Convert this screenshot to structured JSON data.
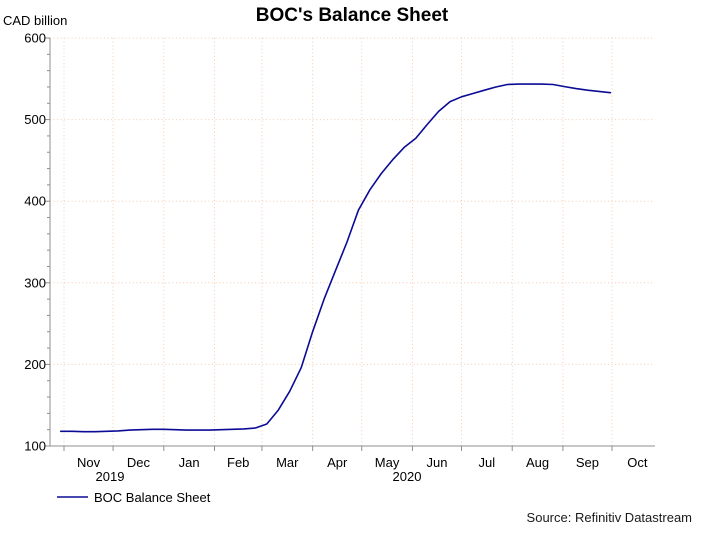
{
  "footer": {
    "source": "Source: Refinitiv Datastream"
  },
  "colors": {
    "line": "#0b0b96",
    "grid": "#f4cbb0",
    "axis": "#8f8f8f",
    "text": "#000000"
  },
  "chart_data": {
    "type": "line",
    "title": "BOC's Balance Sheet",
    "ylabel": "CAD billion",
    "ylim": [
      100,
      600
    ],
    "yticks": [
      100,
      200,
      300,
      400,
      500,
      600
    ],
    "y_minor_step": 20,
    "grid": true,
    "legend_position": "bottom-left",
    "x_axis": {
      "start": "2019-10-30",
      "end": "2020-10-26",
      "month_labels": [
        "Nov",
        "Dec",
        "Jan",
        "Feb",
        "Mar",
        "Apr",
        "May",
        "Jun",
        "Jul",
        "Aug",
        "Sep",
        "Oct"
      ],
      "year_labels": [
        "2019",
        "2020"
      ]
    },
    "series": [
      {
        "name": "BOC Balance Sheet",
        "color": "#0b0b96",
        "points": [
          [
            "2019-10-30",
            118
          ],
          [
            "2019-11-06",
            118
          ],
          [
            "2019-11-13",
            117.5
          ],
          [
            "2019-11-20",
            117.5
          ],
          [
            "2019-11-27",
            118
          ],
          [
            "2019-12-04",
            118.5
          ],
          [
            "2019-12-11",
            119.5
          ],
          [
            "2019-12-18",
            120
          ],
          [
            "2019-12-25",
            120.5
          ],
          [
            "2020-01-01",
            120.5
          ],
          [
            "2020-01-08",
            120
          ],
          [
            "2020-01-15",
            119.5
          ],
          [
            "2020-01-22",
            119.5
          ],
          [
            "2020-01-29",
            119.5
          ],
          [
            "2020-02-05",
            120
          ],
          [
            "2020-02-12",
            120.5
          ],
          [
            "2020-02-19",
            121
          ],
          [
            "2020-02-26",
            122
          ],
          [
            "2020-03-04",
            127
          ],
          [
            "2020-03-11",
            144
          ],
          [
            "2020-03-18",
            167
          ],
          [
            "2020-03-25",
            196
          ],
          [
            "2020-04-01",
            240
          ],
          [
            "2020-04-08",
            280
          ],
          [
            "2020-04-15",
            315
          ],
          [
            "2020-04-22",
            350
          ],
          [
            "2020-04-29",
            389
          ],
          [
            "2020-05-06",
            414
          ],
          [
            "2020-05-13",
            434
          ],
          [
            "2020-05-20",
            451
          ],
          [
            "2020-05-27",
            466
          ],
          [
            "2020-06-03",
            477
          ],
          [
            "2020-06-10",
            494
          ],
          [
            "2020-06-17",
            510
          ],
          [
            "2020-06-24",
            522
          ],
          [
            "2020-07-01",
            528
          ],
          [
            "2020-07-08",
            532
          ],
          [
            "2020-07-15",
            536
          ],
          [
            "2020-07-22",
            540
          ],
          [
            "2020-07-29",
            543
          ],
          [
            "2020-08-05",
            543.5
          ],
          [
            "2020-08-12",
            543.5
          ],
          [
            "2020-08-19",
            543.5
          ],
          [
            "2020-08-26",
            543
          ],
          [
            "2020-09-02",
            540.5
          ],
          [
            "2020-09-09",
            538
          ],
          [
            "2020-09-16",
            536
          ],
          [
            "2020-09-23",
            534.5
          ],
          [
            "2020-09-30",
            533
          ]
        ]
      }
    ]
  }
}
